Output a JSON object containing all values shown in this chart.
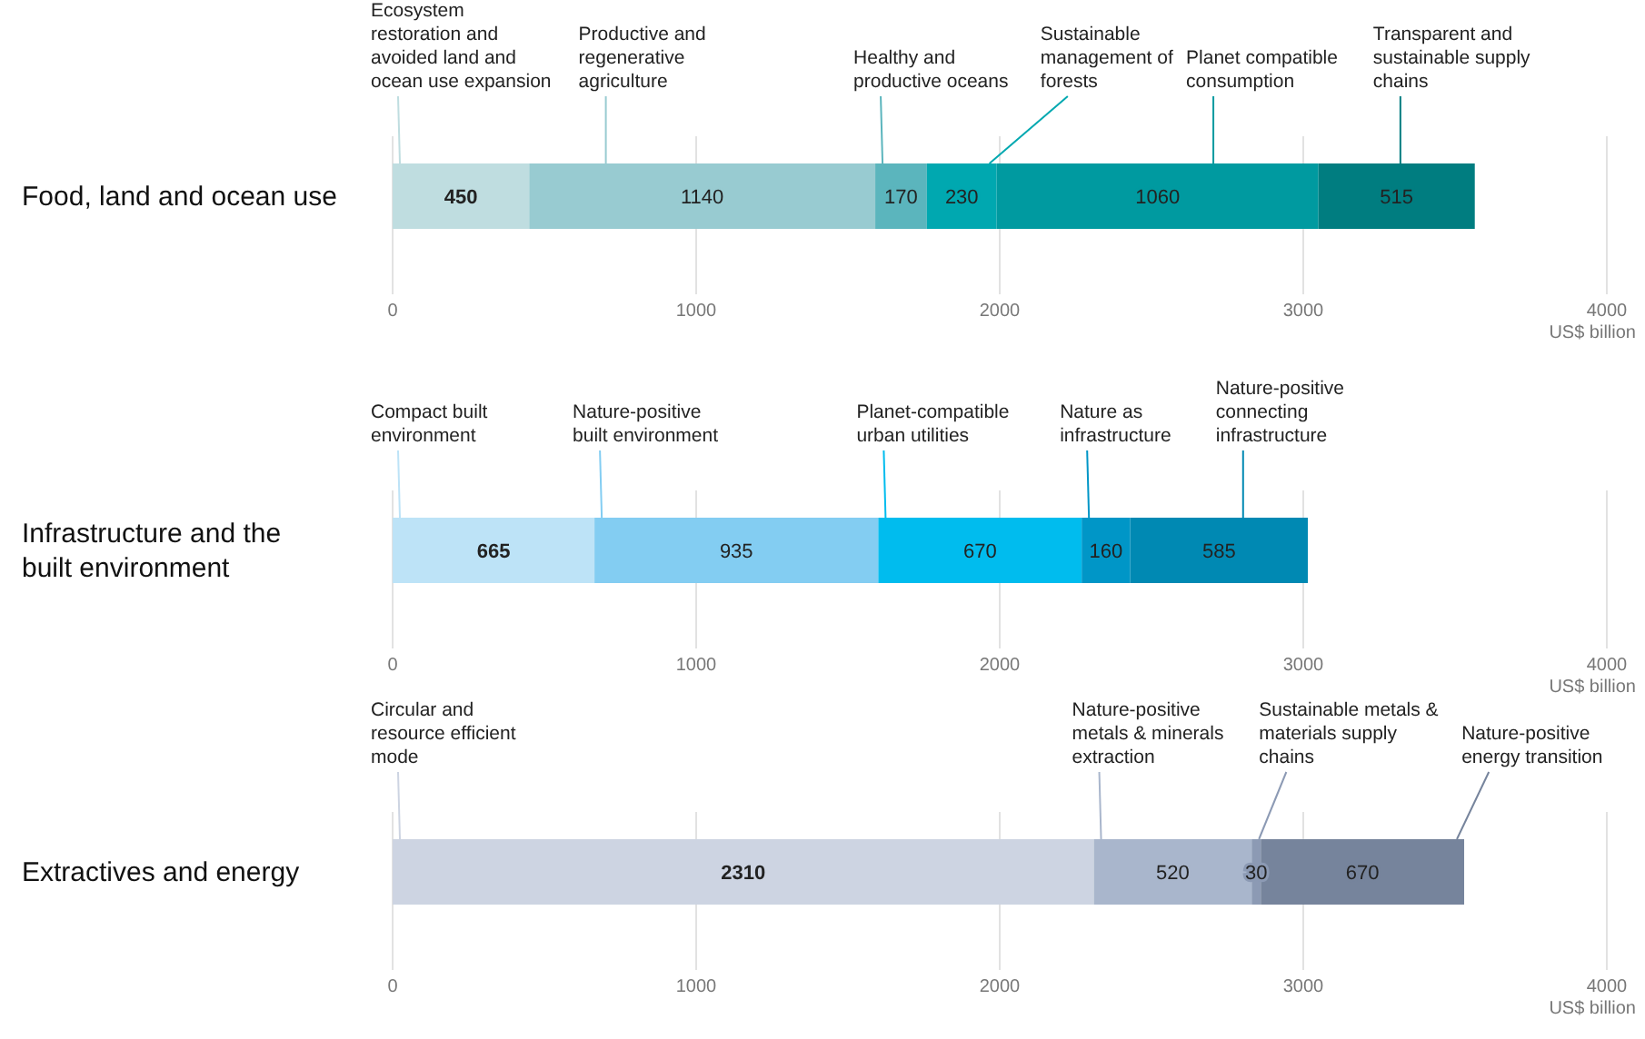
{
  "chart_data": [
    {
      "type": "bar",
      "orientation": "horizontal",
      "stacked": true,
      "categories": [
        "Food, land and ocean use"
      ],
      "xlim": [
        0,
        4000
      ],
      "xticks": [
        0,
        1000,
        2000,
        3000,
        4000
      ],
      "xlabel": "US$ billion",
      "grid": "x",
      "data_labels": true,
      "series": [
        {
          "name": "Ecosystem restoration and avoided land and ocean use expansion",
          "color": "#bfdde0",
          "values": [
            450
          ]
        },
        {
          "name": "Productive and regenerative agriculture",
          "color": "#98cbd1",
          "values": [
            1140
          ]
        },
        {
          "name": "Healthy and productive oceans",
          "color": "#5bb5bd",
          "values": [
            170
          ]
        },
        {
          "name": "Sustainable management of forests",
          "color": "#00a8b0",
          "values": [
            230
          ]
        },
        {
          "name": "Planet compatible consumption",
          "color": "#009aa0",
          "values": [
            1060
          ]
        },
        {
          "name": "Transparent and sustainable supply chains",
          "color": "#007d80",
          "values": [
            515
          ]
        }
      ]
    },
    {
      "type": "bar",
      "orientation": "horizontal",
      "stacked": true,
      "categories": [
        "Infrastructure and the built environment"
      ],
      "xlim": [
        0,
        4000
      ],
      "xticks": [
        0,
        1000,
        2000,
        3000,
        4000
      ],
      "xlabel": "US$ billion",
      "grid": "x",
      "data_labels": true,
      "series": [
        {
          "name": "Compact built environment",
          "color": "#bde3f7",
          "values": [
            665
          ]
        },
        {
          "name": "Nature-positive built environment",
          "color": "#83cdf2",
          "values": [
            935
          ]
        },
        {
          "name": "Planet-compatible urban utilities",
          "color": "#00bcee",
          "values": [
            670
          ]
        },
        {
          "name": "Nature as infrastructure",
          "color": "#0096c7",
          "values": [
            160
          ]
        },
        {
          "name": "Nature-positive connecting infrastructure",
          "color": "#0089b3",
          "values": [
            585
          ]
        }
      ]
    },
    {
      "type": "bar",
      "orientation": "horizontal",
      "stacked": true,
      "categories": [
        "Extractives and energy"
      ],
      "xlim": [
        0,
        4000
      ],
      "xticks": [
        0,
        1000,
        2000,
        3000,
        4000
      ],
      "xlabel": "US$ billion",
      "grid": "x",
      "data_labels": true,
      "series": [
        {
          "name": "Circular and resource efficient mode",
          "color": "#cdd4e2",
          "values": [
            2310
          ]
        },
        {
          "name": "Nature-positive metals & minerals extraction",
          "color": "#a9b6cc",
          "values": [
            520
          ]
        },
        {
          "name": "Sustainable metals & materials supply chains",
          "color": "#8c9ab4",
          "values": [
            30
          ]
        },
        {
          "name": "Nature-positive energy transition",
          "color": "#76849c",
          "values": [
            670
          ]
        }
      ]
    }
  ]
}
